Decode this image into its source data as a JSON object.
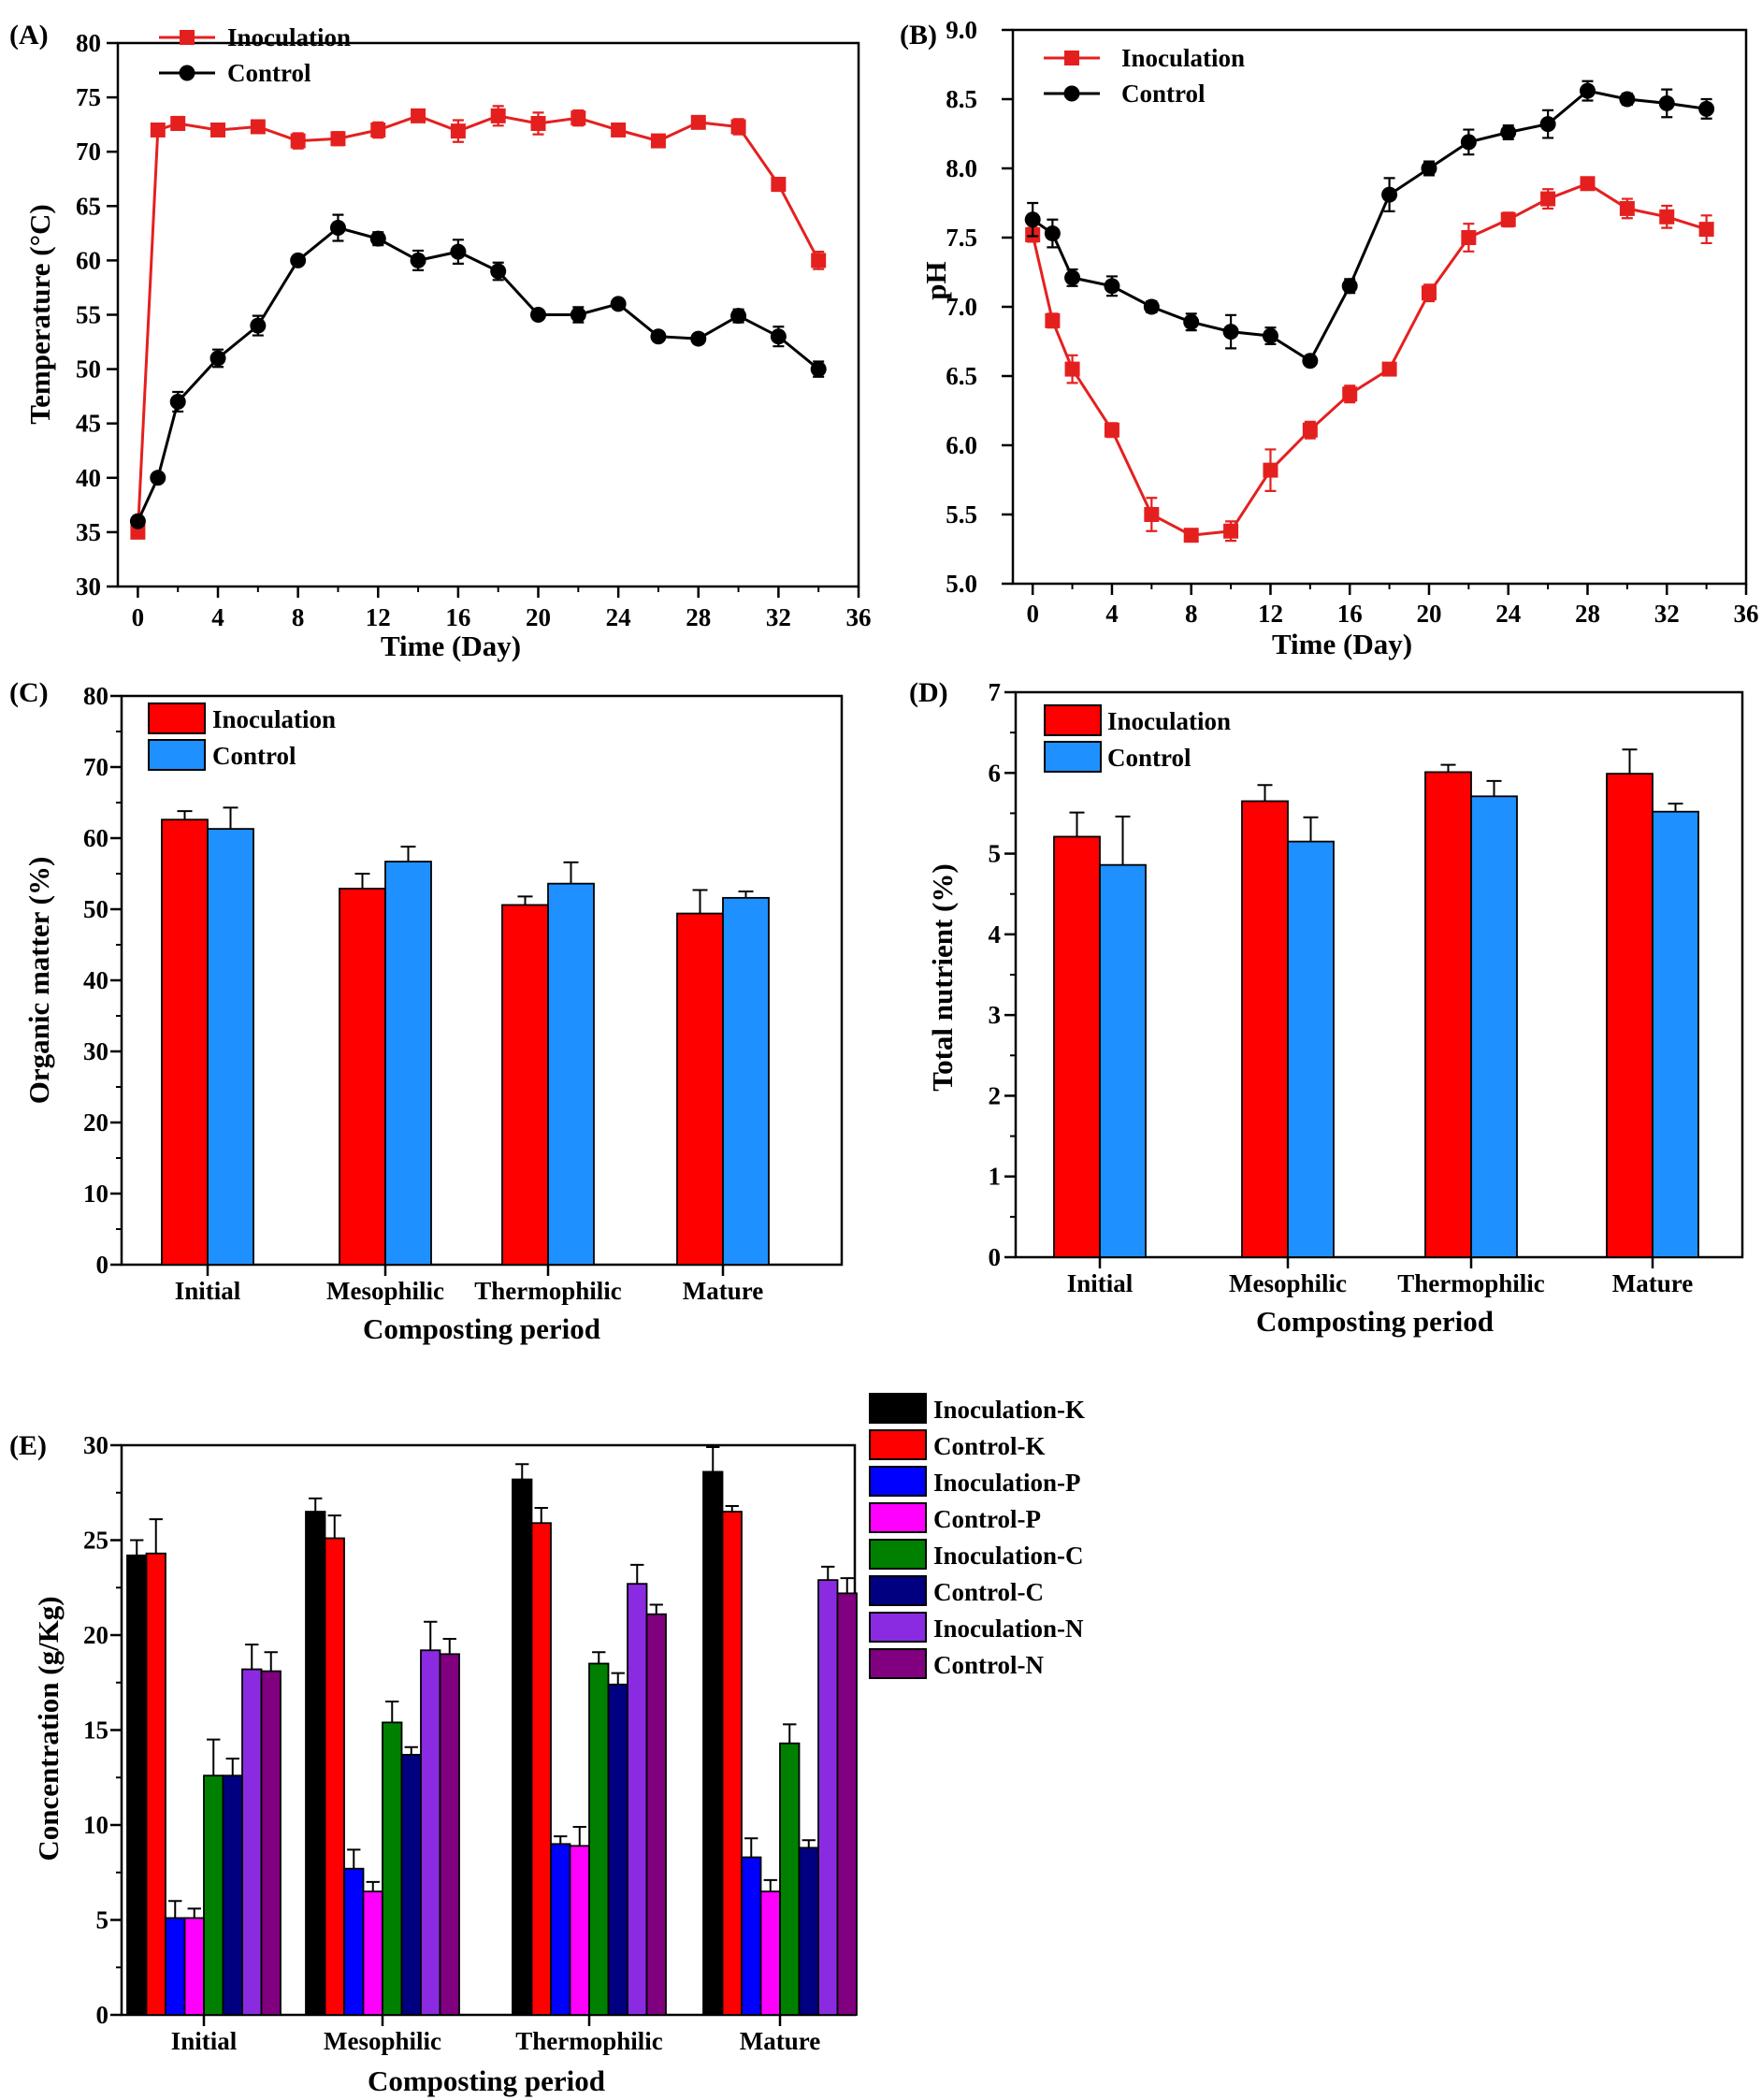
{
  "chart_data": [
    {
      "panel": "(A)",
      "type": "line",
      "x": [
        0,
        1,
        2,
        4,
        6,
        8,
        10,
        12,
        14,
        16,
        18,
        20,
        22,
        24,
        26,
        28,
        30,
        32,
        34
      ],
      "series": [
        {
          "name": "Inoculation",
          "color": "#e4201f",
          "marker": "square",
          "values": [
            35,
            72,
            72.6,
            72,
            72.3,
            71,
            71.2,
            72,
            73.3,
            71.9,
            73.3,
            72.6,
            73.1,
            72,
            71,
            72.7,
            72.3,
            67,
            60
          ],
          "errors": [
            0.3,
            0.3,
            0.6,
            0.4,
            0.4,
            0.7,
            0.6,
            0.7,
            0.5,
            1.0,
            0.9,
            1.0,
            0.7,
            0.4,
            0.4,
            0.4,
            0.7,
            0.6,
            0.8
          ]
        },
        {
          "name": "Control",
          "color": "#000000",
          "marker": "circle",
          "values": [
            36,
            40,
            47,
            51,
            54,
            60,
            63,
            62,
            60,
            60.8,
            59,
            55,
            55,
            56,
            53,
            52.8,
            54.9,
            53,
            50
          ],
          "errors": [
            0.4,
            0.4,
            0.9,
            0.8,
            0.9,
            0.4,
            1.2,
            0.6,
            0.9,
            1.1,
            0.8,
            0.3,
            0.7,
            0.3,
            0.3,
            0.4,
            0.6,
            0.9,
            0.7
          ]
        }
      ],
      "title": "",
      "xlabel": "Time (Day)",
      "ylabel": "Temperature (°C)",
      "xlim": [
        -1,
        36
      ],
      "ylim": [
        30,
        80
      ],
      "xticks": [
        "0",
        "4",
        "8",
        "12",
        "16",
        "20",
        "24",
        "28",
        "32",
        "36"
      ],
      "yticks": [
        "30",
        "35",
        "40",
        "45",
        "50",
        "55",
        "60",
        "65",
        "70",
        "75",
        "80"
      ],
      "legend": "top-left"
    },
    {
      "panel": "(B)",
      "type": "line",
      "x": [
        0,
        1,
        2,
        4,
        6,
        8,
        10,
        12,
        14,
        16,
        18,
        20,
        22,
        24,
        26,
        28,
        30,
        32,
        34
      ],
      "series": [
        {
          "name": "Inoculation",
          "color": "#e4201f",
          "marker": "square",
          "values": [
            7.52,
            6.9,
            6.55,
            6.11,
            5.5,
            5.35,
            5.38,
            5.82,
            6.11,
            6.37,
            6.55,
            7.1,
            7.5,
            7.63,
            7.78,
            7.89,
            7.71,
            7.65,
            7.56
          ],
          "errors": [
            0.05,
            0.05,
            0.1,
            0.05,
            0.12,
            0.03,
            0.07,
            0.15,
            0.06,
            0.06,
            0.04,
            0.06,
            0.1,
            0.05,
            0.07,
            0.04,
            0.07,
            0.08,
            0.1
          ]
        },
        {
          "name": "Control",
          "color": "#000000",
          "marker": "circle",
          "values": [
            7.63,
            7.53,
            7.21,
            7.15,
            7.0,
            6.89,
            6.82,
            6.79,
            6.61,
            7.15,
            7.81,
            8.0,
            8.19,
            8.26,
            8.32,
            8.56,
            8.5,
            8.47,
            8.43
          ],
          "errors": [
            0.12,
            0.1,
            0.06,
            0.07,
            0.04,
            0.06,
            0.12,
            0.06,
            0.03,
            0.05,
            0.12,
            0.05,
            0.09,
            0.05,
            0.1,
            0.07,
            0.04,
            0.1,
            0.07
          ]
        }
      ],
      "title": "",
      "xlabel": "Time (Day)",
      "ylabel": "pH",
      "xlim": [
        -1,
        36
      ],
      "ylim": [
        5.0,
        9.0
      ],
      "xticks": [
        "0",
        "4",
        "8",
        "12",
        "16",
        "20",
        "24",
        "28",
        "32",
        "36"
      ],
      "yticks": [
        "5.0",
        "5.5",
        "6.0",
        "6.5",
        "7.0",
        "7.5",
        "8.0",
        "8.5",
        "9.0"
      ],
      "legend": "top-left"
    },
    {
      "panel": "(C)",
      "type": "bar",
      "categories": [
        "Initial",
        "Mesophilic",
        "Thermophilic",
        "Mature"
      ],
      "series": [
        {
          "name": "Inoculation",
          "color": "#ff0000",
          "values": [
            62.6,
            52.9,
            50.6,
            49.4
          ],
          "errors": [
            1.2,
            2.1,
            1.2,
            3.3
          ]
        },
        {
          "name": "Control",
          "color": "#1e90ff",
          "values": [
            61.3,
            56.7,
            53.6,
            51.6
          ],
          "errors": [
            3.0,
            2.1,
            3.0,
            0.9
          ]
        }
      ],
      "title": "",
      "xlabel": "Composting period",
      "ylabel": "Organic matter (%)",
      "ylim": [
        0,
        80
      ],
      "yticks": [
        "0",
        "10",
        "20",
        "30",
        "40",
        "50",
        "60",
        "70",
        "80"
      ],
      "legend": "top-left"
    },
    {
      "panel": "(D)",
      "type": "bar",
      "categories": [
        "Initial",
        "Mesophilic",
        "Thermophilic",
        "Mature"
      ],
      "series": [
        {
          "name": "Inoculation",
          "color": "#ff0000",
          "values": [
            5.21,
            5.65,
            6.01,
            5.99
          ],
          "errors": [
            0.3,
            0.2,
            0.09,
            0.3
          ]
        },
        {
          "name": "Control",
          "color": "#1e90ff",
          "values": [
            4.86,
            5.15,
            5.71,
            5.52
          ],
          "errors": [
            0.6,
            0.3,
            0.19,
            0.1
          ]
        }
      ],
      "title": "",
      "xlabel": "Composting period",
      "ylabel": "Total nutrient (%)",
      "ylim": [
        0,
        7
      ],
      "yticks": [
        "0",
        "1",
        "2",
        "3",
        "4",
        "5",
        "6",
        "7"
      ],
      "legend": "top-left"
    },
    {
      "panel": "(E)",
      "type": "bar",
      "categories": [
        "Initial",
        "Mesophilic",
        "Thermophilic",
        "Mature"
      ],
      "series": [
        {
          "name": "Inoculation-K",
          "color": "#000000",
          "values": [
            24.2,
            26.5,
            28.2,
            28.6
          ],
          "errors": [
            0.8,
            0.7,
            0.8,
            1.3
          ]
        },
        {
          "name": "Control-K",
          "color": "#ff0000",
          "values": [
            24.3,
            25.1,
            25.9,
            26.5
          ],
          "errors": [
            1.8,
            1.2,
            0.8,
            0.3
          ]
        },
        {
          "name": "Inoculation-P",
          "color": "#0000ff",
          "values": [
            5.1,
            7.7,
            9.0,
            8.3
          ],
          "errors": [
            0.9,
            1.0,
            0.4,
            1.0
          ]
        },
        {
          "name": "Control-P",
          "color": "#ff00ff",
          "values": [
            5.1,
            6.5,
            8.9,
            6.5
          ],
          "errors": [
            0.5,
            0.5,
            1.0,
            0.6
          ]
        },
        {
          "name": "Inoculation-C",
          "color": "#008000",
          "values": [
            12.6,
            15.4,
            18.5,
            14.3
          ],
          "errors": [
            1.9,
            1.1,
            0.6,
            1.0
          ]
        },
        {
          "name": "Control-C",
          "color": "#000080",
          "values": [
            12.6,
            13.7,
            17.4,
            8.8
          ],
          "errors": [
            0.9,
            0.4,
            0.6,
            0.4
          ]
        },
        {
          "name": "Inoculation-N",
          "color": "#8a2be2",
          "values": [
            18.2,
            19.2,
            22.7,
            22.9
          ],
          "errors": [
            1.3,
            1.5,
            1.0,
            0.7
          ]
        },
        {
          "name": "Control-N",
          "color": "#800080",
          "values": [
            18.1,
            19.0,
            21.1,
            22.2
          ],
          "errors": [
            1.0,
            0.8,
            0.5,
            0.8
          ]
        }
      ],
      "title": "",
      "xlabel": "Composting period",
      "ylabel": "Concentration (g/Kg)",
      "ylim": [
        0,
        30
      ],
      "yticks": [
        "0",
        "5",
        "10",
        "15",
        "20",
        "25",
        "30"
      ],
      "legend": "top-right outside"
    }
  ]
}
